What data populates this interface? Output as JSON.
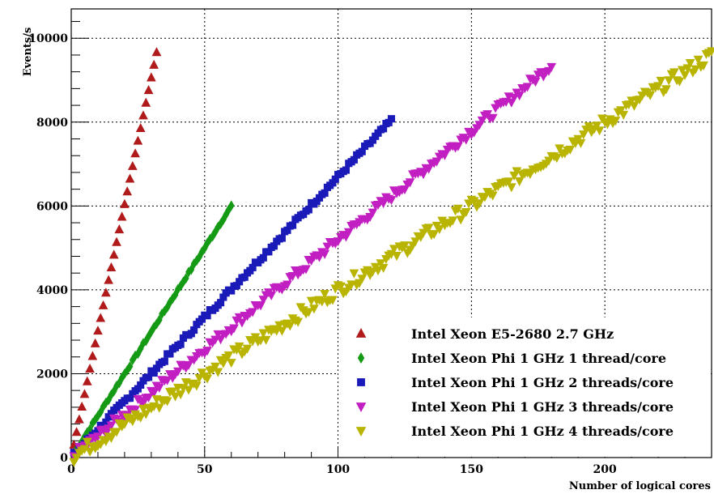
{
  "chart_data": {
    "type": "scatter",
    "title": "",
    "xlabel": "Number of logical cores",
    "ylabel": "Events/s",
    "xlim": [
      0,
      240
    ],
    "ylim": [
      0,
      10700
    ],
    "x_ticks": [
      0,
      50,
      100,
      150,
      200
    ],
    "y_ticks": [
      0,
      2000,
      4000,
      6000,
      8000,
      10000
    ],
    "grid": true,
    "legend_position": "bottom-right",
    "series": [
      {
        "name": "Intel Xeon E5-2680 2.7 GHz",
        "color": "#b01a1a",
        "marker": "triangle-up",
        "x_max": 32,
        "x_step": 1,
        "slope": 302,
        "noise": 0
      },
      {
        "name": "Intel Xeon Phi 1 GHz 1 thread/core",
        "color": "#149a14",
        "marker": "diamond",
        "x_max": 60,
        "x_step": 1,
        "slope": 100,
        "noise": 30
      },
      {
        "name": "Intel Xeon Phi 1 GHz 2 threads/core",
        "color": "#1a1ab8",
        "marker": "square",
        "x_max": 120,
        "x_step": 1,
        "slope": 67,
        "noise": 60
      },
      {
        "name": "Intel Xeon Phi 1 GHz 3 threads/core",
        "color": "#c21fc2",
        "marker": "triangle-down",
        "x_max": 180,
        "x_step": 1,
        "slope": 52,
        "noise": 110
      },
      {
        "name": "Intel Xeon Phi 1 GHz 4 threads/core",
        "color": "#b8b400",
        "marker": "triangle-down",
        "x_max": 240,
        "x_step": 1,
        "slope": 40,
        "noise": 160
      }
    ]
  }
}
